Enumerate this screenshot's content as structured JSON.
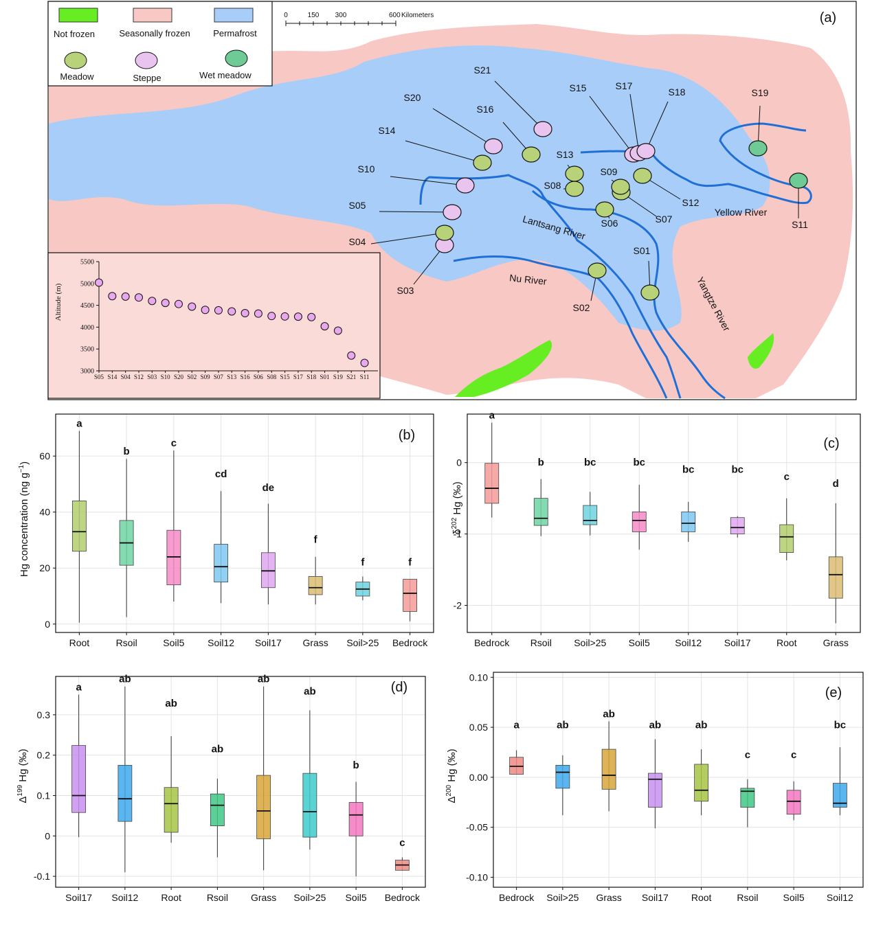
{
  "map": {
    "panel_label": "(a)",
    "legend": {
      "zones": [
        {
          "label": "Not frozen",
          "color": "#66ee22"
        },
        {
          "label": "Seasonally frozen",
          "color": "#f8c8c4"
        },
        {
          "label": "Permafrost",
          "color": "#a8cdf8"
        }
      ],
      "vegetation": [
        {
          "label": "Meadow",
          "color": "#b8d27a"
        },
        {
          "label": "Steppe",
          "color": "#e8c4ee"
        },
        {
          "label": "Wet meadow",
          "color": "#6ecb96"
        }
      ]
    },
    "scale": {
      "ticks": [
        "0",
        "150",
        "300",
        "600"
      ],
      "unit": "Kilometers"
    },
    "rivers": [
      "Yellow River",
      "Lantsang River",
      "Nu River",
      "Yangtze River"
    ],
    "sites": [
      {
        "id": "S01",
        "veg": "meadow"
      },
      {
        "id": "S02",
        "veg": "meadow"
      },
      {
        "id": "S03",
        "veg": "steppe"
      },
      {
        "id": "S04",
        "veg": "meadow"
      },
      {
        "id": "S05",
        "veg": "steppe"
      },
      {
        "id": "S06",
        "veg": "meadow"
      },
      {
        "id": "S07",
        "veg": "meadow"
      },
      {
        "id": "S08",
        "veg": "meadow"
      },
      {
        "id": "S09",
        "veg": "meadow"
      },
      {
        "id": "S10",
        "veg": "steppe"
      },
      {
        "id": "S11",
        "veg": "wet"
      },
      {
        "id": "S12",
        "veg": "meadow"
      },
      {
        "id": "S13",
        "veg": "meadow"
      },
      {
        "id": "S14",
        "veg": "meadow"
      },
      {
        "id": "S15",
        "veg": "steppe"
      },
      {
        "id": "S16",
        "veg": "meadow"
      },
      {
        "id": "S17",
        "veg": "steppe"
      },
      {
        "id": "S18",
        "veg": "steppe"
      },
      {
        "id": "S19",
        "veg": "wet"
      },
      {
        "id": "S20",
        "veg": "steppe"
      },
      {
        "id": "S21",
        "veg": "steppe"
      }
    ],
    "inset": {
      "ylabel": "Altitude (m)",
      "yticks": [
        3000,
        3500,
        4000,
        4500,
        5000,
        5500
      ],
      "ylim": [
        3000,
        5500
      ],
      "sites": [
        "S05",
        "S14",
        "S04",
        "S12",
        "S03",
        "S10",
        "S20",
        "S02",
        "S09",
        "S07",
        "S13",
        "S16",
        "S06",
        "S08",
        "S15",
        "S17",
        "S18",
        "S01",
        "S19",
        "S21",
        "S11"
      ],
      "altitude": [
        5020,
        4710,
        4700,
        4680,
        4600,
        4555,
        4530,
        4470,
        4395,
        4385,
        4360,
        4320,
        4310,
        4255,
        4245,
        4240,
        4230,
        4020,
        3920,
        3350,
        3180
      ]
    }
  },
  "chart_data": [
    {
      "type": "box",
      "panel": "(b)",
      "ylabel": "Hg concentration (ng g⁻¹)",
      "ylim": [
        -3,
        75
      ],
      "yticks": [
        0,
        20,
        40,
        60
      ],
      "categories": [
        "Root",
        "Rsoil",
        "Soil5",
        "Soil12",
        "Soil17",
        "Grass",
        "Soil>25",
        "Bedrock"
      ],
      "colors": [
        "#b3cf6d",
        "#6fd4a3",
        "#f68bc6",
        "#7ec8f0",
        "#dfa6ef",
        "#dcbd72",
        "#6fd3df",
        "#f39b98"
      ],
      "letters": [
        "a",
        "b",
        "c",
        "cd",
        "de",
        "f",
        "f",
        "f"
      ],
      "boxes": [
        {
          "min": 0.5,
          "q1": 26,
          "median": 33,
          "q3": 44,
          "max": 69,
          "label_y": 69
        },
        {
          "min": 2.5,
          "q1": 21,
          "median": 29,
          "q3": 37,
          "max": 59,
          "label_y": 59
        },
        {
          "min": 8,
          "q1": 14,
          "median": 24,
          "q3": 33.5,
          "max": 62,
          "label_y": 62
        },
        {
          "min": 7.5,
          "q1": 15,
          "median": 20.5,
          "q3": 28.5,
          "max": 47.5,
          "label_y": 51
        },
        {
          "min": 7,
          "q1": 13,
          "median": 19,
          "q3": 25.5,
          "max": 43,
          "label_y": 46
        },
        {
          "min": 7,
          "q1": 10.5,
          "median": 13,
          "q3": 17,
          "max": 24,
          "label_y": 27.5
        },
        {
          "min": 8.5,
          "q1": 10,
          "median": 12.5,
          "q3": 15,
          "max": 17,
          "label_y": 19.5
        },
        {
          "min": 1,
          "q1": 4.5,
          "median": 11,
          "q3": 16,
          "max": 16,
          "label_y": 19.5
        }
      ]
    },
    {
      "type": "box",
      "panel": "(c)",
      "ylabel": "δ²⁰² Hg (‰)",
      "ylim": [
        -2.38,
        0.68
      ],
      "yticks": [
        0,
        -1,
        -2
      ],
      "categories": [
        "Bedrock",
        "Rsoil",
        "Soil>25",
        "Soil5",
        "Soil12",
        "Soil17",
        "Root",
        "Grass"
      ],
      "colors": [
        "#f39b98",
        "#6fd4a3",
        "#6fd3df",
        "#f68bc6",
        "#7ec8f0",
        "#dfa6ef",
        "#b3cf6d",
        "#dcbd72"
      ],
      "letters": [
        "a",
        "b",
        "bc",
        "bc",
        "bc",
        "bc",
        "c",
        "d"
      ],
      "boxes": [
        {
          "min": -0.77,
          "q1": -0.57,
          "median": -0.36,
          "q3": -0.01,
          "max": 0.56,
          "label_y": 0.56
        },
        {
          "min": -1.03,
          "q1": -0.88,
          "median": -0.78,
          "q3": -0.5,
          "max": -0.23,
          "label_y": -0.1
        },
        {
          "min": -1.02,
          "q1": -0.87,
          "median": -0.81,
          "q3": -0.6,
          "max": -0.41,
          "label_y": -0.1
        },
        {
          "min": -1.22,
          "q1": -0.97,
          "median": -0.81,
          "q3": -0.69,
          "max": -0.31,
          "label_y": -0.1
        },
        {
          "min": -1.11,
          "q1": -0.97,
          "median": -0.85,
          "q3": -0.69,
          "max": -0.55,
          "label_y": -0.2
        },
        {
          "min": -1.05,
          "q1": -1.0,
          "median": -0.91,
          "q3": -0.77,
          "max": -0.75,
          "label_y": -0.2
        },
        {
          "min": -1.37,
          "q1": -1.26,
          "median": -1.04,
          "q3": -0.87,
          "max": -0.5,
          "label_y": -0.3
        },
        {
          "min": -2.25,
          "q1": -1.9,
          "median": -1.57,
          "q3": -1.32,
          "max": -0.57,
          "label_y": -0.4
        }
      ]
    },
    {
      "type": "box",
      "panel": "(d)",
      "ylabel": "Δ¹⁹⁹ Hg (‰)",
      "ylim": [
        -0.127,
        0.395
      ],
      "yticks": [
        -0.1,
        0.0,
        0.1,
        0.2,
        0.3
      ],
      "categories": [
        "Soil17",
        "Soil12",
        "Root",
        "Rsoil",
        "Grass",
        "Soil>25",
        "Soil5",
        "Bedrock"
      ],
      "colors": [
        "#c88ff0",
        "#3ea8ec",
        "#a7c444",
        "#3fc884",
        "#d8a53a",
        "#3ecbcb",
        "#f577c0",
        "#f08a84"
      ],
      "letters": [
        "a",
        "ab",
        "ab",
        "ab",
        "ab",
        "ab",
        "b",
        "c"
      ],
      "boxes": [
        {
          "min": -0.003,
          "q1": 0.058,
          "median": 0.1,
          "q3": 0.224,
          "max": 0.35,
          "label_y": 0.35
        },
        {
          "min": -0.09,
          "q1": 0.036,
          "median": 0.092,
          "q3": 0.175,
          "max": 0.37,
          "label_y": 0.37
        },
        {
          "min": -0.017,
          "q1": 0.009,
          "median": 0.08,
          "q3": 0.12,
          "max": 0.247,
          "label_y": 0.31
        },
        {
          "min": -0.053,
          "q1": 0.025,
          "median": 0.076,
          "q3": 0.104,
          "max": 0.142,
          "label_y": 0.197
        },
        {
          "min": -0.085,
          "q1": -0.007,
          "median": 0.062,
          "q3": 0.15,
          "max": 0.37,
          "label_y": 0.37
        },
        {
          "min": -0.034,
          "q1": -0.003,
          "median": 0.06,
          "q3": 0.155,
          "max": 0.311,
          "label_y": 0.34
        },
        {
          "min": -0.1,
          "q1": 0.0,
          "median": 0.052,
          "q3": 0.083,
          "max": 0.134,
          "label_y": 0.157
        },
        {
          "min": -0.086,
          "q1": -0.085,
          "median": -0.072,
          "q3": -0.06,
          "max": -0.053,
          "label_y": -0.035
        }
      ]
    },
    {
      "type": "box",
      "panel": "(e)",
      "ylabel": "Δ²⁰⁰ Hg (‰)",
      "ylim": [
        -0.11,
        0.105
      ],
      "yticks": [
        -0.1,
        -0.05,
        0.0,
        0.05,
        0.1
      ],
      "ytick_labels": [
        "-0.10",
        "-0.05",
        "0.00",
        "0.05",
        "0.10"
      ],
      "categories": [
        "Bedrock",
        "Soil>25",
        "Grass",
        "Soil17",
        "Root",
        "Rsoil",
        "Soil5",
        "Soil12"
      ],
      "colors": [
        "#f08a84",
        "#3ea8ec",
        "#d8a53a",
        "#c88ff0",
        "#a7c444",
        "#3fc884",
        "#f577c0",
        "#3ea8ec"
      ],
      "letters": [
        "a",
        "ab",
        "ab",
        "ab",
        "ab",
        "c",
        "c",
        "bc"
      ],
      "boxes": [
        {
          "min": 0.003,
          "q1": 0.003,
          "median": 0.011,
          "q3": 0.02,
          "max": 0.027,
          "label_y": 0.045
        },
        {
          "min": -0.038,
          "q1": -0.011,
          "median": 0.005,
          "q3": 0.012,
          "max": 0.022,
          "label_y": 0.045
        },
        {
          "min": -0.034,
          "q1": -0.012,
          "median": 0.002,
          "q3": 0.028,
          "max": 0.056,
          "label_y": 0.056
        },
        {
          "min": -0.051,
          "q1": -0.03,
          "median": -0.002,
          "q3": 0.004,
          "max": 0.038,
          "label_y": 0.045
        },
        {
          "min": -0.038,
          "q1": -0.024,
          "median": -0.013,
          "q3": 0.013,
          "max": 0.028,
          "label_y": 0.045
        },
        {
          "min": -0.05,
          "q1": -0.03,
          "median": -0.014,
          "q3": -0.011,
          "max": -0.002,
          "label_y": 0.015
        },
        {
          "min": -0.043,
          "q1": -0.037,
          "median": -0.024,
          "q3": -0.013,
          "max": -0.004,
          "label_y": 0.015
        },
        {
          "min": -0.038,
          "q1": -0.03,
          "median": -0.026,
          "q3": -0.006,
          "max": 0.03,
          "label_y": 0.045
        }
      ]
    }
  ]
}
